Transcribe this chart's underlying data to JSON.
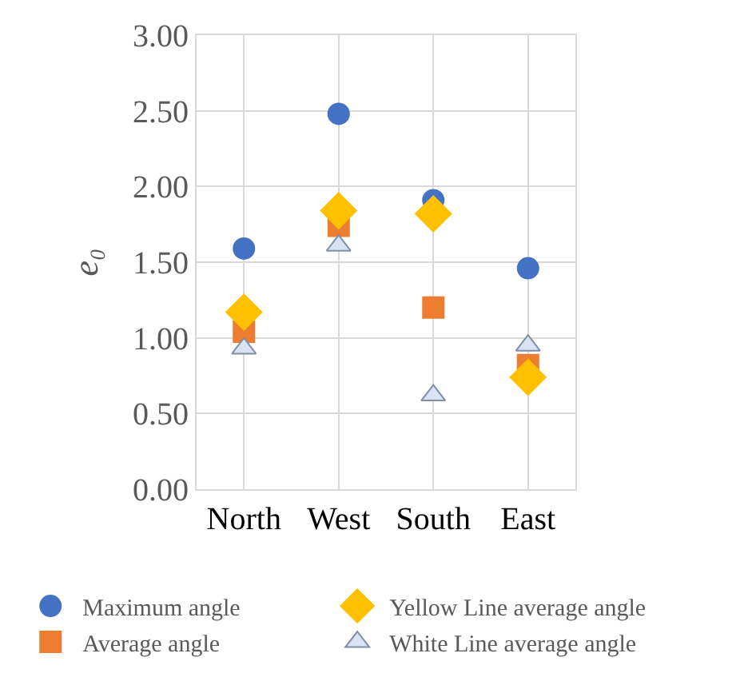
{
  "chart_data": {
    "type": "scatter",
    "ylabel": "e₀",
    "categories": [
      "North",
      "West",
      "South",
      "East"
    ],
    "series": [
      {
        "name": "Maximum angle",
        "color": "#4472c4",
        "marker": "circle",
        "values": [
          1.59,
          2.48,
          1.91,
          1.46
        ]
      },
      {
        "name": "Average angle",
        "color": "#ed7d31",
        "marker": "square",
        "values": [
          1.04,
          1.74,
          1.2,
          0.82
        ]
      },
      {
        "name": "Yellow Line average angle",
        "color": "#ffc000",
        "marker": "diamond",
        "values": [
          1.17,
          1.84,
          1.82,
          0.74
        ]
      },
      {
        "name": "White Line average angle",
        "color": "#dae3f3",
        "marker": "triangle",
        "values": [
          0.93,
          1.61,
          0.62,
          0.95
        ]
      }
    ],
    "ylim": [
      0,
      3
    ],
    "yticks": [
      {
        "value": 0,
        "label": "0.00"
      },
      {
        "value": 0.5,
        "label": "0.50"
      },
      {
        "value": 1,
        "label": "1.00"
      },
      {
        "value": 1.5,
        "label": "1.50"
      },
      {
        "value": 2,
        "label": "2.00"
      },
      {
        "value": 2.5,
        "label": "2.50"
      },
      {
        "value": 3,
        "label": "3.00"
      }
    ],
    "grid": true,
    "legend": "bottom"
  }
}
